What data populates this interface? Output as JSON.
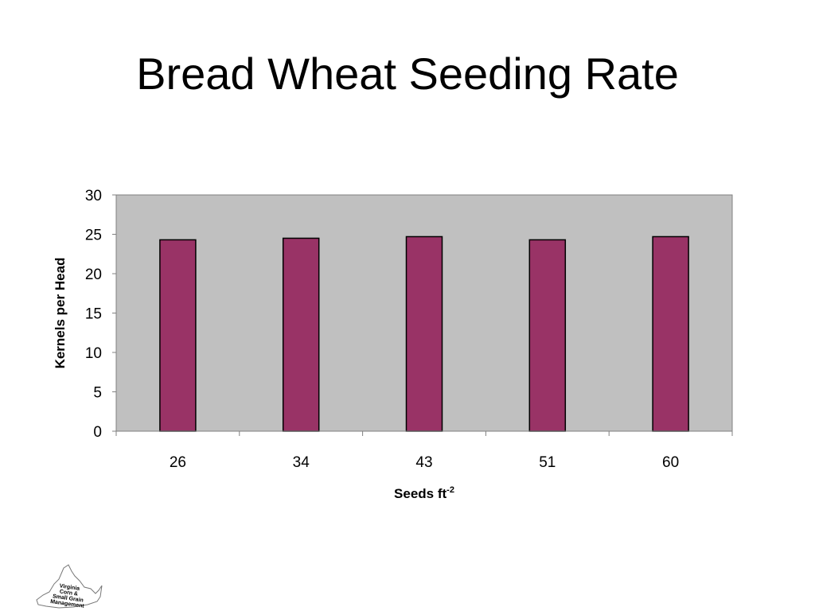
{
  "slide": {
    "title": "Bread Wheat Seeding Rate"
  },
  "chart_data": {
    "type": "bar",
    "categories": [
      "26",
      "34",
      "43",
      "51",
      "60"
    ],
    "values": [
      24.3,
      24.5,
      24.7,
      24.3,
      24.7
    ],
    "xlabel": "Seeds ft",
    "xlabel_superscript": "-2",
    "ylabel": "Kernels per Head",
    "ylim": [
      0,
      30
    ],
    "yticks": [
      "0",
      "5",
      "10",
      "15",
      "20",
      "25",
      "30"
    ],
    "grid": false,
    "legend": "none",
    "colors": {
      "bar": "#993366",
      "plot_background": "#c0c0c0"
    }
  },
  "logo": {
    "lines": [
      "Virginia",
      "Corn &",
      "Small Grain",
      "Management"
    ]
  }
}
